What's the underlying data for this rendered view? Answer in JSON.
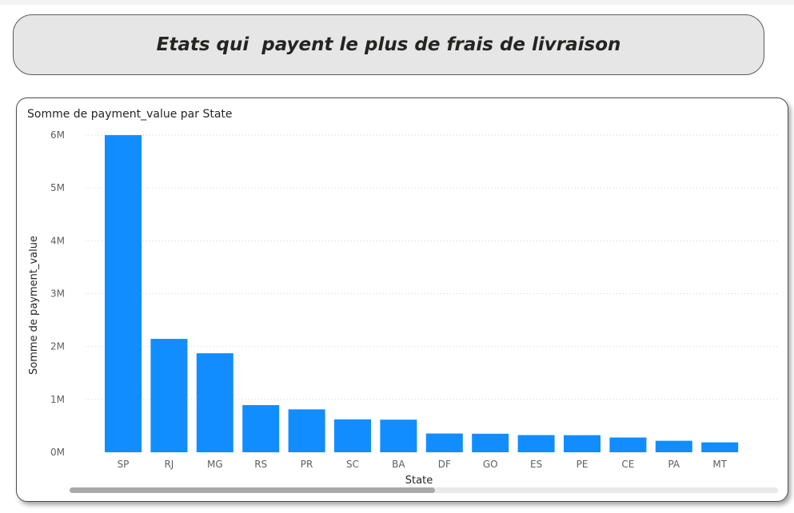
{
  "banner": {
    "title": "Etats qui  payent le plus de frais de livraison"
  },
  "chart_data": {
    "type": "bar",
    "title": "Somme de payment_value par State",
    "xlabel": "State",
    "ylabel": "Somme de payment_value",
    "categories": [
      "SP",
      "RJ",
      "MG",
      "RS",
      "PR",
      "SC",
      "BA",
      "DF",
      "GO",
      "ES",
      "PE",
      "CE",
      "PA",
      "MT"
    ],
    "values": [
      5998000,
      2145000,
      1873000,
      891000,
      812000,
      623000,
      617000,
      355000,
      350000,
      325000,
      324000,
      280000,
      218000,
      187000
    ],
    "ylim": [
      0,
      6000000
    ],
    "yticks": [
      0,
      1000000,
      2000000,
      3000000,
      4000000,
      5000000,
      6000000
    ],
    "ytick_labels": [
      "0M",
      "1M",
      "2M",
      "3M",
      "4M",
      "5M",
      "6M"
    ],
    "grid": true,
    "bar_color": "#118DFF"
  }
}
